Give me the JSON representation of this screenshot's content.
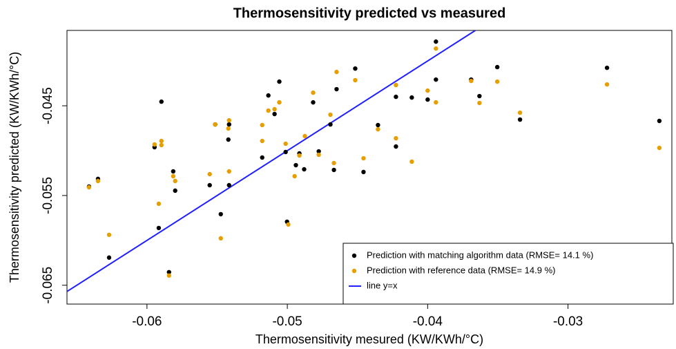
{
  "chart_data": {
    "type": "scatter",
    "title": "Thermosensitivity predicted vs measured",
    "x_label": "Thermosensitivity mesured (KW/KWh/°C)",
    "y_label": "Thermosensitivity predicted (KW/KWh/°C)",
    "xlim": [
      -0.0657,
      -0.0226
    ],
    "ylim": [
      -0.0671,
      -0.0366
    ],
    "xticks": [
      -0.06,
      -0.05,
      -0.04,
      -0.03
    ],
    "yticks": [
      -0.045,
      -0.055,
      -0.065
    ],
    "legend": "bottom-right",
    "series": [
      {
        "name": "Prediction with matching algorithm data (RMSE= 14.1 %)",
        "color": "#000000",
        "x": [
          -0.06413,
          -0.06349,
          -0.0627,
          -0.05946,
          -0.05897,
          -0.05916,
          -0.05843,
          -0.05813,
          -0.05799,
          -0.05553,
          -0.05514,
          -0.05474,
          -0.0542,
          -0.05415,
          -0.05415,
          -0.05179,
          -0.05135,
          -0.05091,
          -0.05057,
          -0.05012,
          -0.05002,
          -0.0488,
          -0.04939,
          -0.04914,
          -0.04816,
          -0.04776,
          -0.04693,
          -0.04668,
          -0.04649,
          -0.04516,
          -0.04457,
          -0.04354,
          -0.04226,
          -0.04226,
          -0.04113,
          -0.04,
          -0.03941,
          -0.03941,
          -0.0369,
          -0.03631,
          -0.03504,
          -0.03342,
          -0.02722,
          -0.02349
        ],
        "values": [
          -0.054,
          -0.05315,
          -0.06192,
          -0.04962,
          -0.04454,
          -0.05862,
          -0.06354,
          -0.05231,
          -0.05446,
          -0.05385,
          -0.04708,
          -0.05708,
          -0.04877,
          -0.04708,
          -0.05385,
          -0.05077,
          -0.04385,
          -0.04592,
          -0.04231,
          -0.05015,
          -0.05792,
          -0.05208,
          -0.05162,
          -0.05031,
          -0.04462,
          -0.05008,
          -0.04708,
          -0.05215,
          -0.04315,
          -0.04085,
          -0.05238,
          -0.04715,
          -0.04954,
          -0.044,
          -0.04408,
          -0.04431,
          -0.03785,
          -0.04208,
          -0.04208,
          -0.04392,
          -0.04069,
          -0.04654,
          -0.04077,
          -0.04669
        ]
      },
      {
        "name": "Prediction with reference data (RMSE= 14.9 %)",
        "color": "#e69f00",
        "x": [
          -0.06413,
          -0.06349,
          -0.0627,
          -0.05946,
          -0.05897,
          -0.05897,
          -0.05916,
          -0.05843,
          -0.05813,
          -0.05799,
          -0.05553,
          -0.05514,
          -0.05474,
          -0.0542,
          -0.05415,
          -0.05415,
          -0.05179,
          -0.05179,
          -0.05135,
          -0.05091,
          -0.05057,
          -0.05012,
          -0.04993,
          -0.04948,
          -0.04914,
          -0.04875,
          -0.04816,
          -0.04776,
          -0.04693,
          -0.04668,
          -0.04649,
          -0.04516,
          -0.04457,
          -0.04354,
          -0.04226,
          -0.04226,
          -0.04113,
          -0.04,
          -0.03941,
          -0.03941,
          -0.0369,
          -0.03631,
          -0.03504,
          -0.03342,
          -0.02722,
          -0.02349
        ],
        "values": [
          -0.05408,
          -0.05338,
          -0.05938,
          -0.04931,
          -0.04938,
          -0.04892,
          -0.05592,
          -0.06392,
          -0.05285,
          -0.05338,
          -0.05262,
          -0.04708,
          -0.05977,
          -0.04754,
          -0.04662,
          -0.05231,
          -0.04892,
          -0.04715,
          -0.04554,
          -0.04538,
          -0.04462,
          -0.04923,
          -0.05823,
          -0.05285,
          -0.05054,
          -0.04838,
          -0.04354,
          -0.05046,
          -0.046,
          -0.05138,
          -0.04123,
          -0.04215,
          -0.05085,
          -0.04762,
          -0.04269,
          -0.04862,
          -0.05123,
          -0.04331,
          -0.03862,
          -0.04462,
          -0.04223,
          -0.04469,
          -0.04231,
          -0.04577,
          -0.04262,
          -0.04969
        ]
      }
    ],
    "reference_line": {
      "name": "line y=x",
      "color": "#1f1fff"
    }
  }
}
